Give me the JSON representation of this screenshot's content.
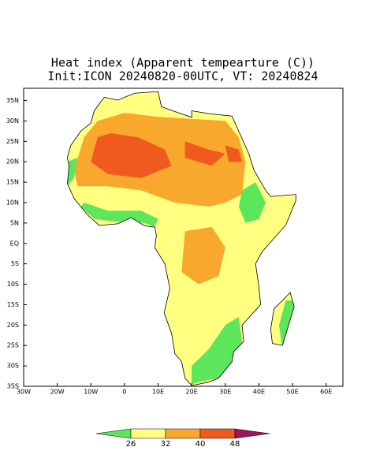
{
  "map": {
    "title": "Heat index (Apparent tempearture (C))",
    "subtitle": "Init:ICON 20240820-00UTC, VT: 20240824",
    "xlim": [
      -30,
      65
    ],
    "ylim": [
      -35,
      38
    ],
    "xticks": [
      {
        "value": -30,
        "label": "30W"
      },
      {
        "value": -20,
        "label": "20W"
      },
      {
        "value": -10,
        "label": "10W"
      },
      0,
      {
        "value": 10,
        "label": "10E"
      },
      {
        "value": 20,
        "label": "20E"
      },
      {
        "value": 30,
        "label": "30E"
      },
      {
        "value": 40,
        "label": "40E"
      },
      {
        "value": 50,
        "label": "50E"
      },
      {
        "value": 60,
        "label": "60E"
      }
    ],
    "yticks": [
      {
        "value": -35,
        "label": "35S"
      },
      {
        "value": -30,
        "label": "30S"
      },
      {
        "value": -25,
        "label": "25S"
      },
      {
        "value": -20,
        "label": "20S"
      },
      {
        "value": -15,
        "label": "15S"
      },
      {
        "value": -10,
        "label": "10S"
      },
      {
        "value": -5,
        "label": "5S"
      },
      {
        "value": 0,
        "label": "EQ"
      },
      {
        "value": 5,
        "label": "5N"
      },
      {
        "value": 10,
        "label": "10N"
      },
      {
        "value": 15,
        "label": "15N"
      },
      {
        "value": 20,
        "label": "20N"
      },
      {
        "value": 25,
        "label": "25N"
      },
      {
        "value": 30,
        "label": "30N"
      },
      {
        "value": 35,
        "label": "35N"
      }
    ],
    "colorbar": {
      "levels": [
        26,
        32,
        40,
        48
      ],
      "colors": [
        "#5ce65c",
        "#ffff80",
        "#f8a82c",
        "#f05a1e",
        "#a0155a"
      ]
    }
  }
}
